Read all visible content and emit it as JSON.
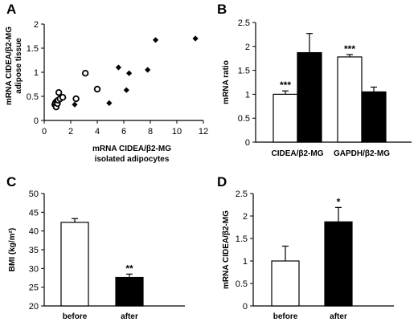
{
  "chart_data": [
    {
      "panel": "A",
      "type": "scatter",
      "xlabel_lines": [
        "mRNA CIDEA/β2-MG",
        "isolated adipocytes"
      ],
      "ylabel_lines": [
        "mRNA CIDEA/β2-MG",
        "adipose tissue"
      ],
      "xlim": [
        0,
        12
      ],
      "ylim": [
        0,
        2
      ],
      "xticks": [
        0,
        2,
        4,
        6,
        8,
        10,
        12
      ],
      "yticks": [
        0,
        0.5,
        1,
        1.5,
        2
      ],
      "ytick_labels": [
        "0",
        "0.5",
        "1",
        "1.5",
        "2"
      ],
      "series": [
        {
          "marker": "circle-open",
          "points": [
            [
              0.8,
              0.33
            ],
            [
              0.85,
              0.37
            ],
            [
              0.9,
              0.28
            ],
            [
              0.95,
              0.4
            ],
            [
              1.0,
              0.35
            ],
            [
              1.05,
              0.42
            ],
            [
              1.1,
              0.58
            ],
            [
              1.2,
              0.45
            ],
            [
              1.4,
              0.48
            ],
            [
              2.4,
              0.45
            ],
            [
              3.1,
              0.98
            ],
            [
              4.0,
              0.65
            ]
          ]
        },
        {
          "marker": "diamond-filled",
          "points": [
            [
              2.3,
              0.33
            ],
            [
              4.9,
              0.36
            ],
            [
              5.6,
              1.1
            ],
            [
              6.2,
              0.63
            ],
            [
              6.4,
              0.98
            ],
            [
              7.8,
              1.05
            ],
            [
              8.4,
              1.67
            ],
            [
              11.4,
              1.7
            ]
          ]
        }
      ]
    },
    {
      "panel": "B",
      "type": "bar",
      "ylabel": "mRNA ratio",
      "ylim": [
        0,
        2.5
      ],
      "yticks": [
        0,
        0.5,
        1,
        1.5,
        2,
        2.5
      ],
      "ytick_labels": [
        "0",
        "0.5",
        "1",
        "1.5",
        "2",
        "2.5"
      ],
      "categories": [
        "CIDEA/β2-MG",
        "GAPDH/β2-MG"
      ],
      "series": [
        {
          "fill": "#ffffff",
          "values": [
            1.0,
            1.78
          ],
          "errors": [
            0.07,
            0.05
          ]
        },
        {
          "fill": "#000000",
          "values": [
            1.87,
            1.05
          ],
          "errors": [
            0.4,
            0.1
          ]
        }
      ],
      "annotations": [
        "***",
        "***"
      ]
    },
    {
      "panel": "C",
      "type": "bar",
      "ylabel": "BMI (kg/m²)",
      "ylim": [
        20,
        50
      ],
      "yticks": [
        20,
        25,
        30,
        35,
        40,
        45,
        50
      ],
      "ytick_labels": [
        "20",
        "25",
        "30",
        "35",
        "40",
        "45",
        "50"
      ],
      "categories": [
        "before",
        "after"
      ],
      "values": [
        42.3,
        27.6
      ],
      "errors": [
        1.0,
        0.9
      ],
      "fills": [
        "#ffffff",
        "#000000"
      ],
      "annotations": [
        "",
        "**"
      ]
    },
    {
      "panel": "D",
      "type": "bar",
      "ylabel": "mRNA CIDEA/β2-MG",
      "ylim": [
        0,
        2.5
      ],
      "yticks": [
        0,
        0.5,
        1,
        1.5,
        2,
        2.5
      ],
      "ytick_labels": [
        "0",
        "0.5",
        "1",
        "1.5",
        "2",
        "2.5"
      ],
      "categories": [
        "before",
        "after"
      ],
      "values": [
        1.0,
        1.87
      ],
      "errors": [
        0.33,
        0.32
      ],
      "fills": [
        "#ffffff",
        "#000000"
      ],
      "annotations": [
        "",
        "*"
      ]
    }
  ]
}
